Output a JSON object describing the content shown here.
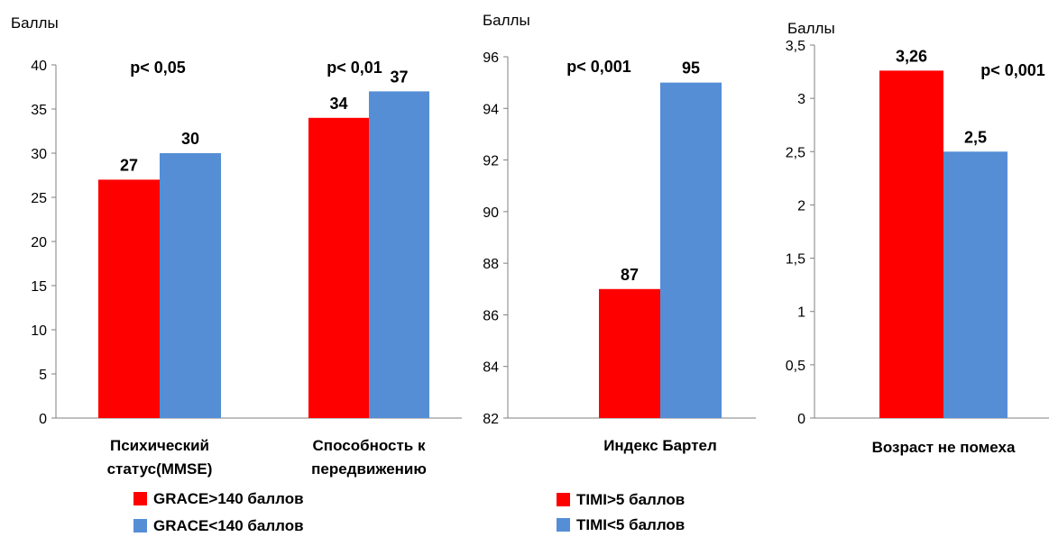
{
  "colors": {
    "red": "#ff0000",
    "blue": "#558ed5"
  },
  "chart_data": [
    {
      "type": "bar",
      "ylabel": "Баллы",
      "ylim": [
        0,
        40
      ],
      "yticks": [
        "0",
        "5",
        "10",
        "15",
        "20",
        "25",
        "30",
        "35",
        "40"
      ],
      "categories": [
        [
          "Психический",
          "статус(MMSE)"
        ],
        [
          "Способность к",
          "передвижению"
        ]
      ],
      "series": [
        {
          "name": "GRACE>140 баллов",
          "values": [
            27,
            34
          ],
          "labels": [
            "27",
            "34"
          ]
        },
        {
          "name": "GRACE<140 баллов",
          "values": [
            30,
            37
          ],
          "labels": [
            "30",
            "37"
          ]
        }
      ],
      "annotations": [
        "p< 0,05",
        "p< 0,01"
      ],
      "legend": "bottom"
    },
    {
      "type": "bar",
      "ylabel": "Баллы",
      "ylim": [
        82,
        96
      ],
      "yticks": [
        "82",
        "84",
        "86",
        "88",
        "90",
        "92",
        "94",
        "96"
      ],
      "categories": [
        [
          "Индекс Бартел"
        ]
      ],
      "series": [
        {
          "name": "TIMI>5 баллов",
          "values": [
            87
          ],
          "labels": [
            "87"
          ]
        },
        {
          "name": "TIMI<5 баллов",
          "values": [
            95
          ],
          "labels": [
            "95"
          ]
        }
      ],
      "annotations": [
        "p< 0,001"
      ],
      "legend": "bottom"
    },
    {
      "type": "bar",
      "ylabel": "Баллы",
      "ylim": [
        0,
        3.5
      ],
      "yticks": [
        "0",
        "0,5",
        "1",
        "1,5",
        "2",
        "2,5",
        "3",
        "3,5"
      ],
      "categories": [
        [
          "Возраст не помеха"
        ]
      ],
      "series": [
        {
          "name": "",
          "values": [
            3.26
          ],
          "labels": [
            "3,26"
          ]
        },
        {
          "name": "",
          "values": [
            2.5
          ],
          "labels": [
            "2,5"
          ]
        }
      ],
      "annotations": [
        "p< 0,001"
      ]
    }
  ]
}
